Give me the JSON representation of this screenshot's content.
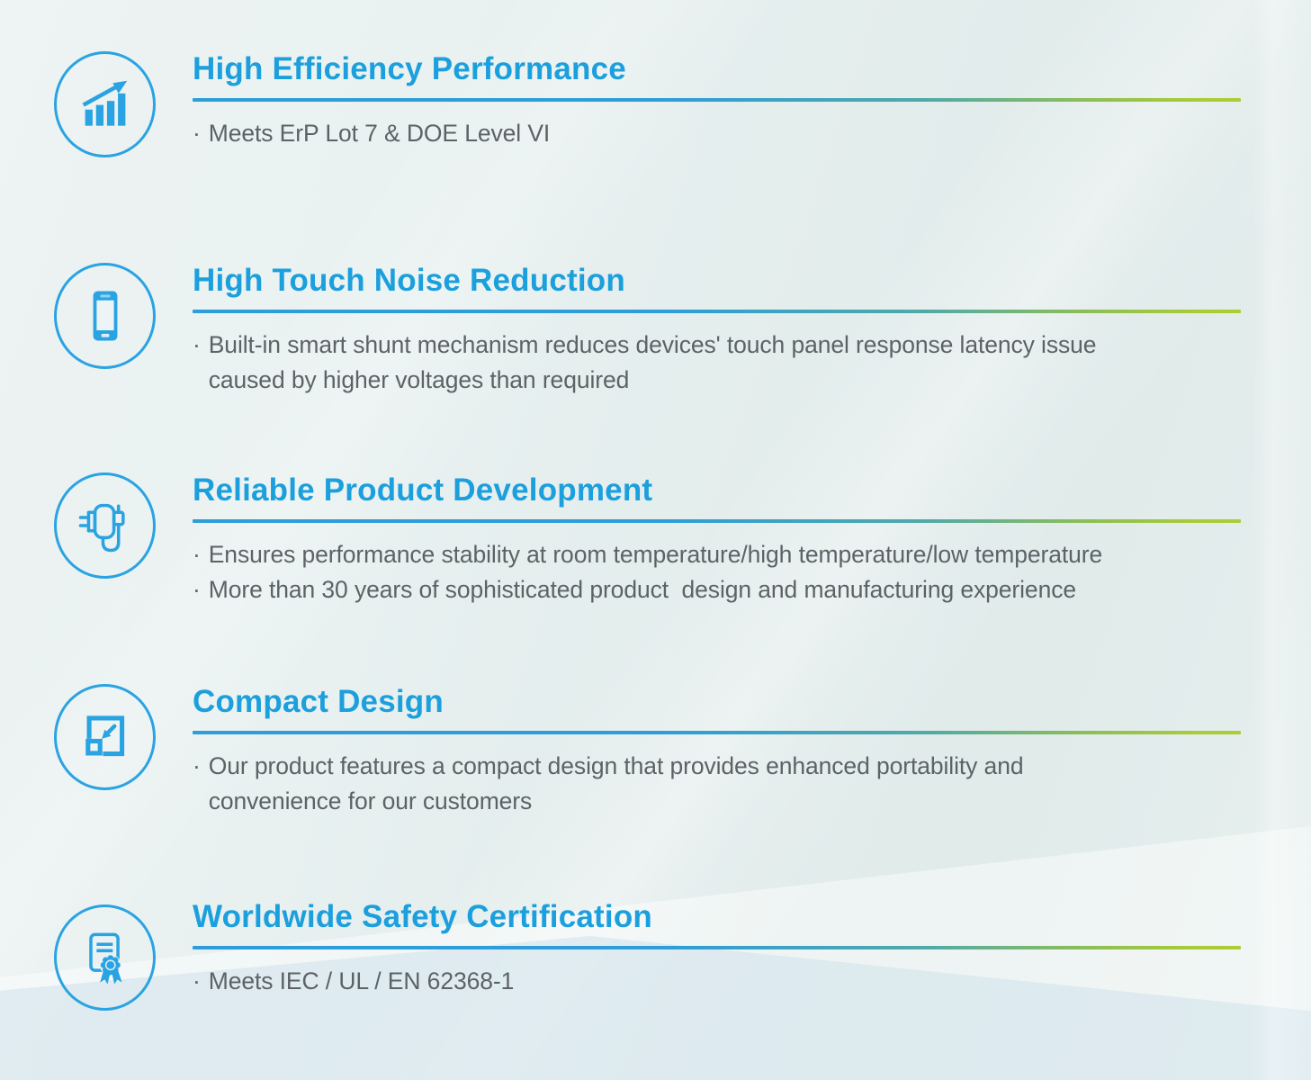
{
  "colors": {
    "accent_blue": "#1b9fdd",
    "icon_blue": "#2aa3e2",
    "rule_gradient_start": "#2d9ed9",
    "rule_gradient_end": "#abcd35",
    "body_text": "#5c6367",
    "background": "#e7efee"
  },
  "bullet_char": "·",
  "features": [
    {
      "icon": "growth-chart-icon",
      "title": "High Efficiency Performance",
      "bullets": [
        "Meets ErP Lot 7 & DOE Level VI"
      ]
    },
    {
      "icon": "smartphone-icon",
      "title": "High Touch Noise Reduction",
      "bullets": [
        "Built-in smart shunt mechanism reduces devices' touch panel response latency issue\ncaused by higher voltages than required"
      ]
    },
    {
      "icon": "power-adapter-icon",
      "title": "Reliable Product Development",
      "bullets": [
        "Ensures performance stability at room temperature/high temperature/low temperature",
        "More than 30 years of sophisticated product  design and manufacturing experience"
      ]
    },
    {
      "icon": "compact-resize-icon",
      "title": "Compact Design",
      "bullets": [
        "Our product features a compact design that provides enhanced portability and\nconvenience for our customers"
      ]
    },
    {
      "icon": "certificate-icon",
      "title": "Worldwide Safety Certification",
      "bullets": [
        "Meets IEC / UL / EN 62368-1"
      ]
    }
  ]
}
